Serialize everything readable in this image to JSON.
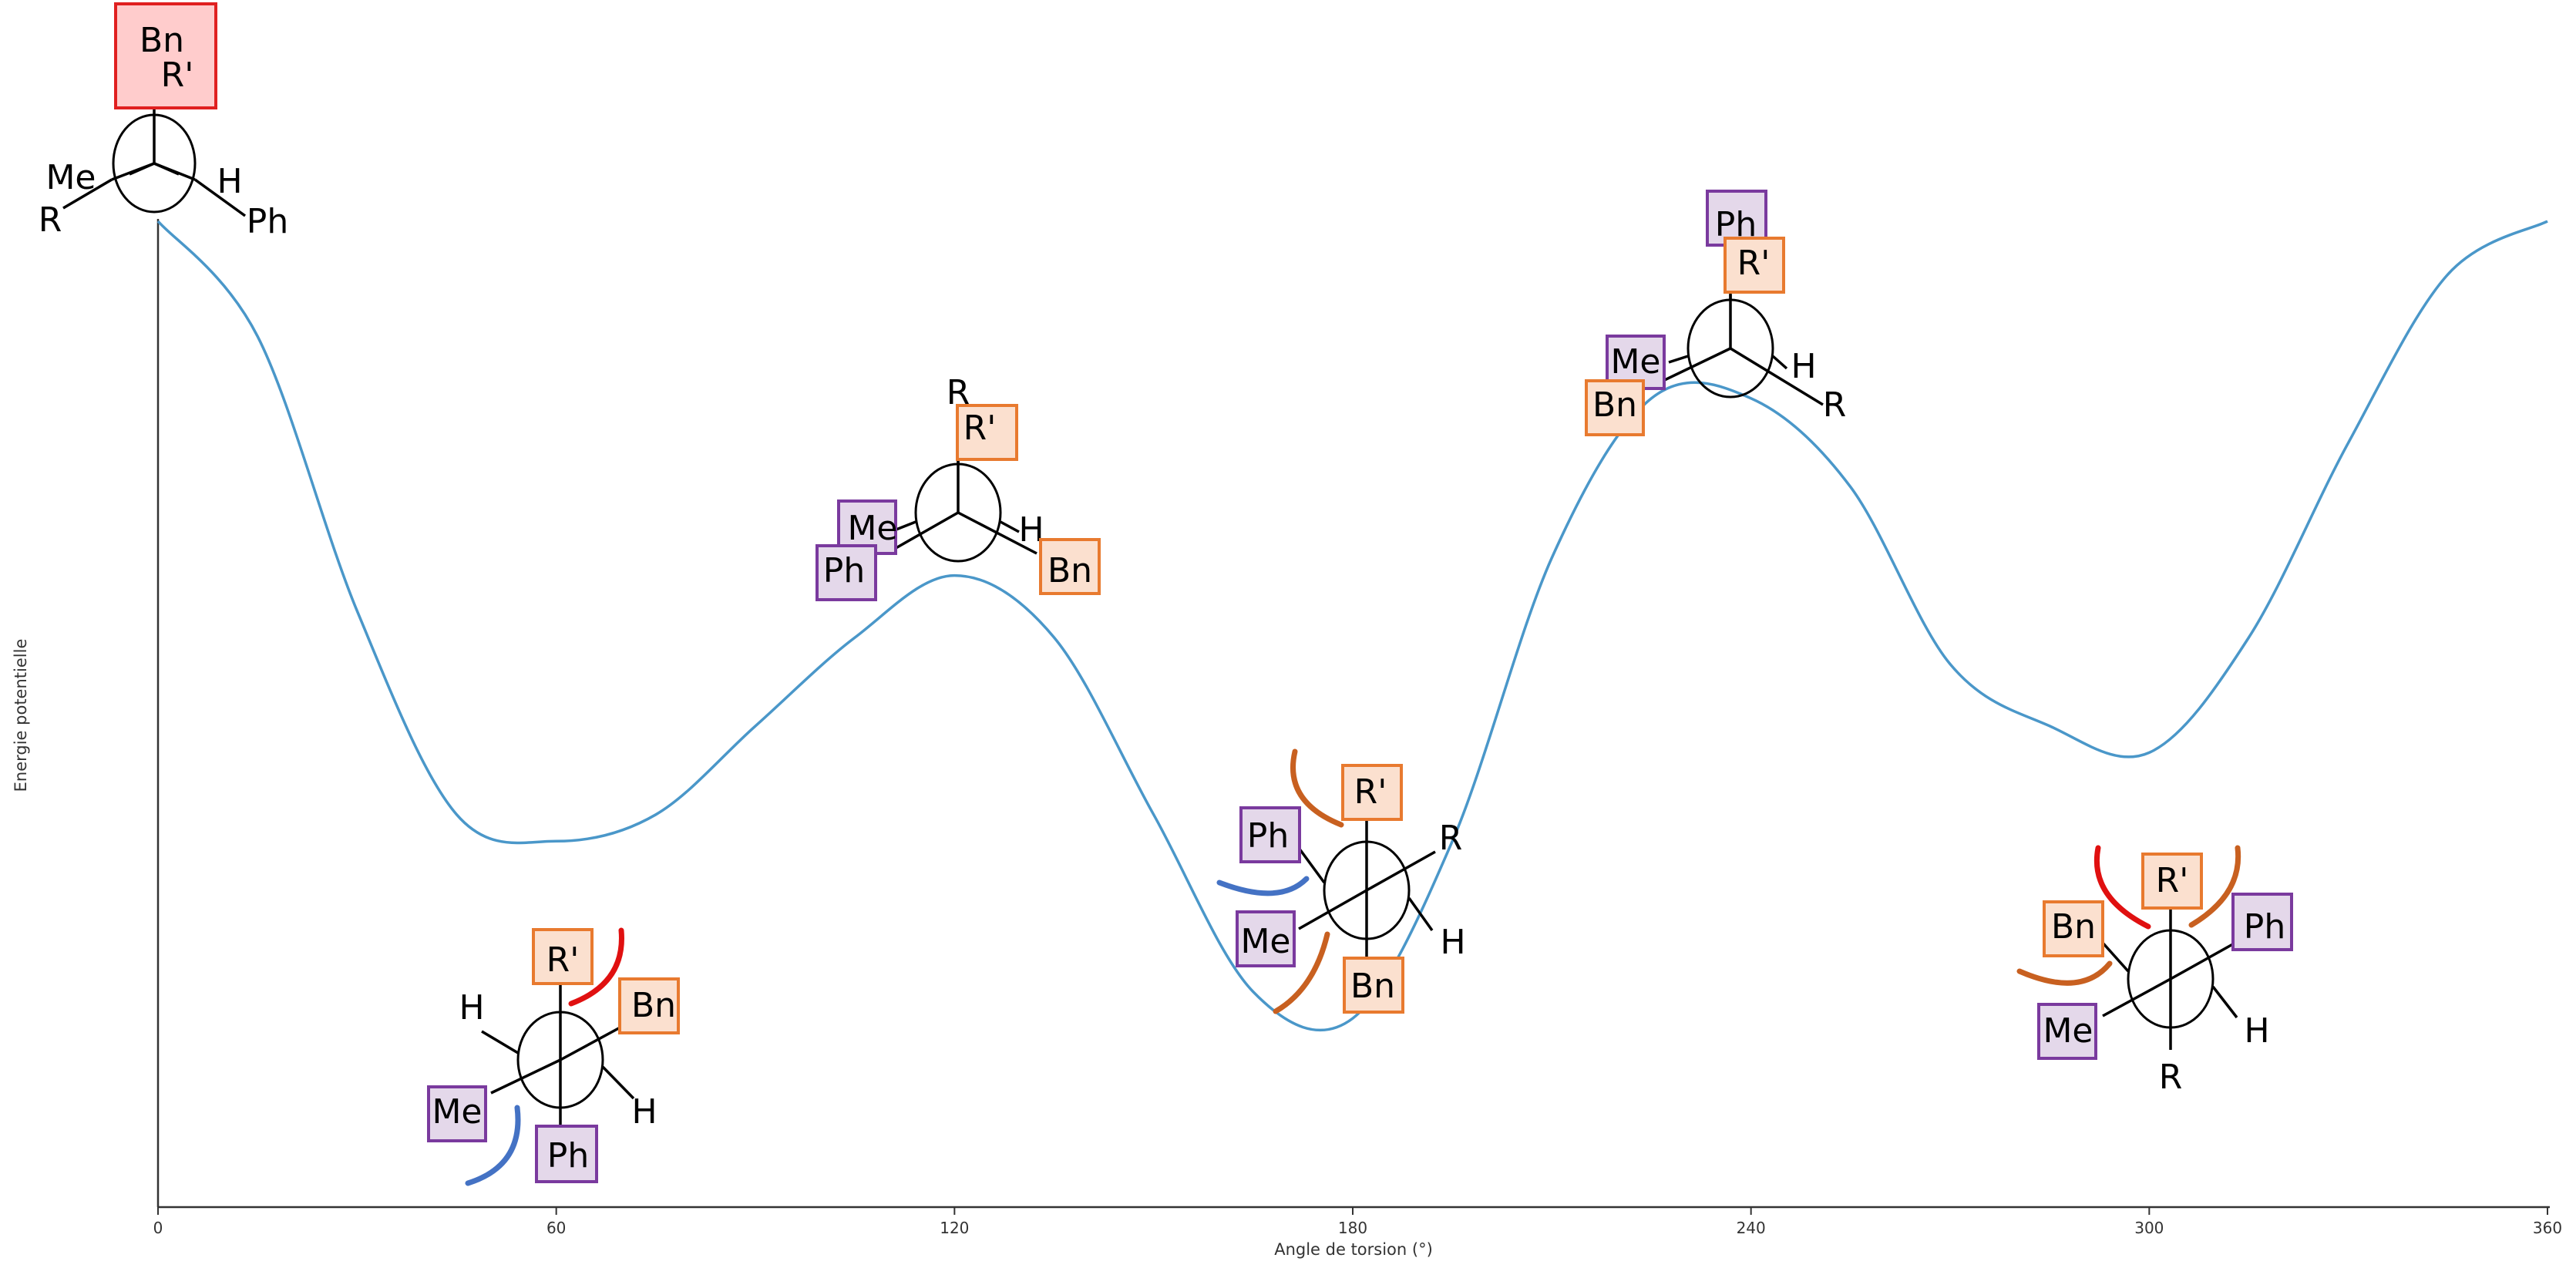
{
  "chart_data": {
    "type": "line",
    "xlabel": "Angle de torsion (°)",
    "ylabel": "Energie potentielle",
    "xlim": [
      0,
      360
    ],
    "xticks": [
      0,
      60,
      120,
      180,
      240,
      300,
      360
    ],
    "ylim": [
      0,
      1
    ],
    "grid": false,
    "series": [
      {
        "color": "#4a97c9",
        "x": [
          0,
          15,
          30,
          45,
          60,
          75,
          90,
          105,
          120,
          135,
          150,
          165,
          180,
          195,
          210,
          225,
          240,
          255,
          270,
          285,
          300,
          315,
          330,
          345,
          360
        ],
        "y": [
          1.0,
          0.87,
          0.56,
          0.33,
          0.3,
          0.33,
          0.43,
          0.53,
          0.6,
          0.53,
          0.33,
          0.13,
          0.1,
          0.3,
          0.62,
          0.8,
          0.8,
          0.7,
          0.5,
          0.43,
          0.4,
          0.53,
          0.75,
          0.94,
          1.0
        ]
      }
    ]
  },
  "colors": {
    "curve": "#4a97c9",
    "axis": "#333333",
    "orange_border": "#e87a2f",
    "orange_fill": "#fbe0cf",
    "purple_border": "#7a3a9e",
    "purple_fill": "#e4d8ea",
    "red_border": "#e02020",
    "red_fill": "#ffcccc",
    "arc_red": "#e01010",
    "arc_orange": "#c86020",
    "arc_blue": "#4472c4"
  },
  "newman": [
    {
      "name": "newman-0",
      "labels": [
        {
          "text": "Bn",
          "box": "red"
        },
        {
          "text": "R'",
          "box": "none"
        },
        {
          "text": "Me",
          "box": "none"
        },
        {
          "text": "H",
          "box": "none"
        },
        {
          "text": "R",
          "box": "none"
        },
        {
          "text": "Ph",
          "box": "none"
        }
      ]
    },
    {
      "name": "newman-60",
      "labels": [
        {
          "text": "R'",
          "box": "orange"
        },
        {
          "text": "Bn",
          "box": "orange"
        },
        {
          "text": "H",
          "box": "none"
        },
        {
          "text": "Me",
          "box": "purple"
        },
        {
          "text": "Ph",
          "box": "purple"
        },
        {
          "text": "H",
          "box": "none"
        }
      ]
    },
    {
      "name": "newman-120",
      "labels": [
        {
          "text": "R",
          "box": "none"
        },
        {
          "text": "R'",
          "box": "orange"
        },
        {
          "text": "Me",
          "box": "purple"
        },
        {
          "text": "Ph",
          "box": "purple"
        },
        {
          "text": "H",
          "box": "none"
        },
        {
          "text": "Bn",
          "box": "orange"
        }
      ]
    },
    {
      "name": "newman-180",
      "labels": [
        {
          "text": "R'",
          "box": "orange"
        },
        {
          "text": "Ph",
          "box": "purple"
        },
        {
          "text": "R",
          "box": "none"
        },
        {
          "text": "Me",
          "box": "purple"
        },
        {
          "text": "H",
          "box": "none"
        },
        {
          "text": "Bn",
          "box": "orange"
        }
      ]
    },
    {
      "name": "newman-240",
      "labels": [
        {
          "text": "Ph",
          "box": "purple"
        },
        {
          "text": "R'",
          "box": "orange"
        },
        {
          "text": "Me",
          "box": "purple"
        },
        {
          "text": "H",
          "box": "none"
        },
        {
          "text": "Bn",
          "box": "orange"
        },
        {
          "text": "R",
          "box": "none"
        }
      ]
    },
    {
      "name": "newman-300",
      "labels": [
        {
          "text": "R'",
          "box": "orange"
        },
        {
          "text": "Bn",
          "box": "orange"
        },
        {
          "text": "Ph",
          "box": "purple"
        },
        {
          "text": "Me",
          "box": "purple"
        },
        {
          "text": "H",
          "box": "none"
        },
        {
          "text": "R",
          "box": "none"
        }
      ]
    }
  ]
}
